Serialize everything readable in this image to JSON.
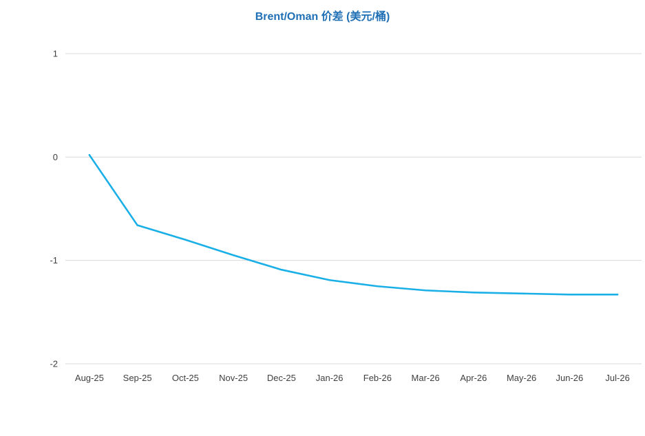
{
  "chart_data": {
    "type": "line",
    "title": "Brent/Oman 价差 (美元/桶)",
    "xlabel": "",
    "ylabel": "",
    "categories": [
      "Aug-25",
      "Sep-25",
      "Oct-25",
      "Nov-25",
      "Dec-25",
      "Jan-26",
      "Feb-26",
      "Mar-26",
      "Apr-26",
      "May-26",
      "Jun-26",
      "Jul-26"
    ],
    "series": [
      {
        "values": [
          0.02,
          -0.66,
          -0.8,
          -0.95,
          -1.09,
          -1.19,
          -1.25,
          -1.29,
          -1.31,
          -1.32,
          -1.33,
          -1.33
        ]
      }
    ],
    "ylim": [
      -2,
      1
    ],
    "yticks": [
      1,
      0,
      -1,
      -2
    ],
    "grid": true,
    "legend": "none",
    "colors": {
      "line": "#1aafe6",
      "title": "#1f6fb5",
      "grid": "#d9d9d9"
    }
  }
}
